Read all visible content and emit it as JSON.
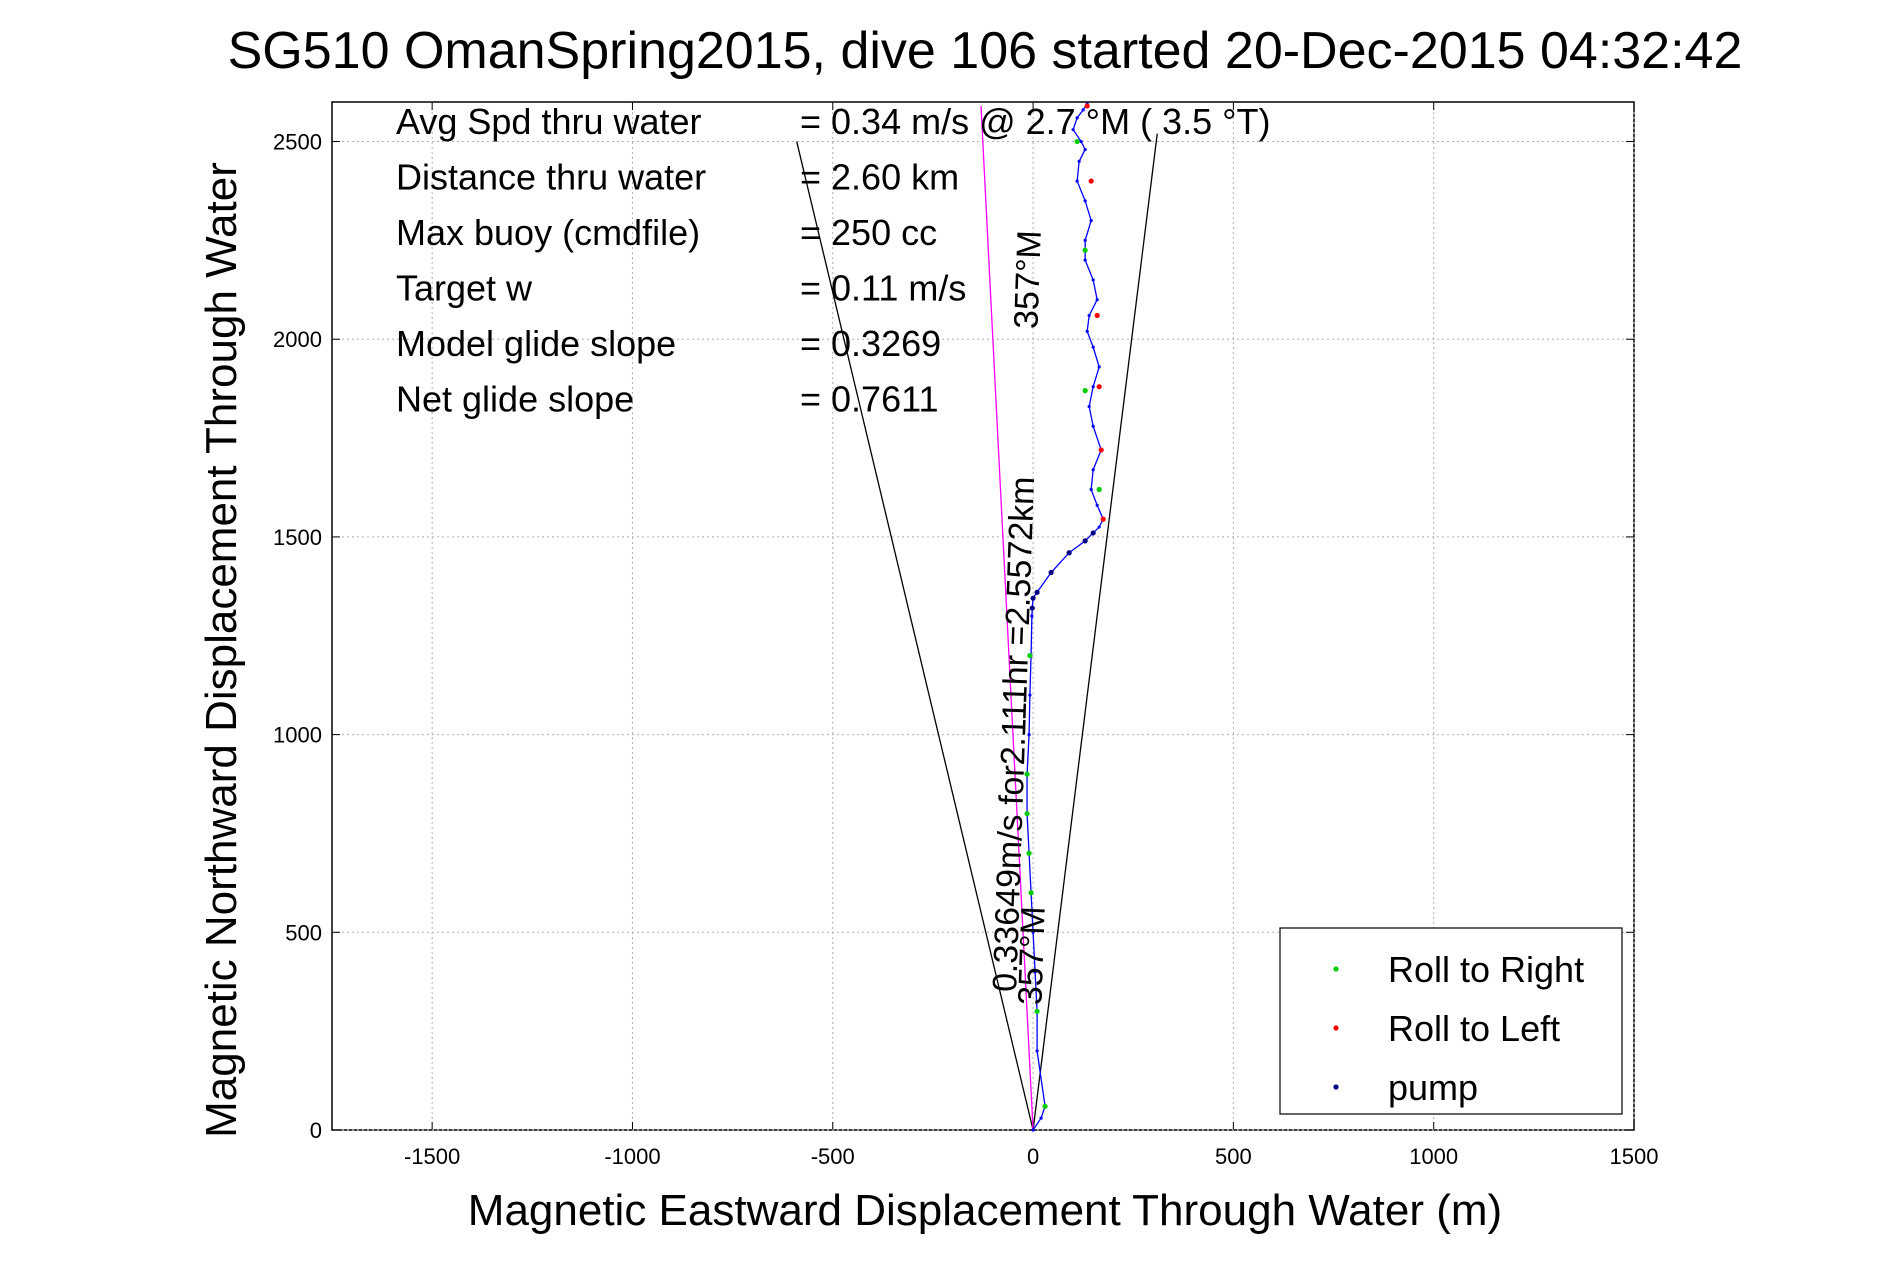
{
  "chart_data": {
    "type": "scatter",
    "title": "SG510 OmanSpring2015, dive 106 started 20-Dec-2015 04:32:42",
    "xlabel": "Magnetic Eastward Displacement Through Water (m)",
    "ylabel": "Magnetic Northward Displacement Through Water",
    "xlim": [
      -1750,
      1500
    ],
    "ylim": [
      0,
      2600
    ],
    "xticks": [
      -1500,
      -1000,
      -500,
      0,
      500,
      1000,
      1500
    ],
    "yticks": [
      0,
      500,
      1000,
      1500,
      2000,
      2500
    ],
    "xtick_labels": [
      "-1500",
      "-1000",
      "-500",
      "0",
      "500",
      "1000",
      "1500"
    ],
    "ytick_labels": [
      "0",
      "500",
      "1000",
      "1500",
      "2000",
      "2500"
    ],
    "grid": true,
    "legend_position": "bottom-right",
    "legend": [
      {
        "label": "Roll to Right",
        "color": "#00cc00"
      },
      {
        "label": "Roll to Left",
        "color": "#ff0000"
      },
      {
        "label": "pump",
        "color": "#000080"
      }
    ],
    "stats": [
      {
        "label": "Avg Spd thru water",
        "value": "=  0.34 m/s @   2.7 °M (  3.5 °T)"
      },
      {
        "label": "Distance thru water",
        "value": "=  2.60 km"
      },
      {
        "label": "Max buoy (cmdfile)",
        "value": "= 250 cc"
      },
      {
        "label": "Target w",
        "value": "= 0.11 m/s"
      },
      {
        "label": "Model glide slope",
        "value": "= 0.3269"
      },
      {
        "label": "Net glide slope",
        "value": "= 0.7611"
      }
    ],
    "annotations": [
      {
        "text": "357°M",
        "x": 15,
        "y": 2150
      },
      {
        "text": "0.33649m/s for2.111hr =2.5572km",
        "x": -20,
        "y": 1000
      },
      {
        "text": "357°M",
        "x": 25,
        "y": 440
      }
    ],
    "reference_lines": [
      {
        "name": "cone-left",
        "x": [
          0,
          -590
        ],
        "y": [
          0,
          2500
        ],
        "color": "#000000"
      },
      {
        "name": "cone-right",
        "x": [
          0,
          310
        ],
        "y": [
          0,
          2520
        ],
        "color": "#000000"
      },
      {
        "name": "track-line",
        "x": [
          0,
          -130
        ],
        "y": [
          0,
          2590
        ],
        "color": "#ff00ff"
      }
    ],
    "series": [
      {
        "name": "track",
        "color": "#0000ff",
        "x": [
          0,
          20,
          30,
          10,
          10,
          5,
          0,
          -5,
          -10,
          -15,
          -15,
          -10,
          -8,
          -5,
          -3,
          -2,
          0,
          10,
          45,
          90,
          130,
          150,
          165,
          175,
          160,
          145,
          150,
          170,
          150,
          140,
          150,
          165,
          150,
          135,
          140,
          160,
          150,
          130,
          130,
          145,
          130,
          110,
          115,
          130,
          120,
          100,
          110,
          125,
          135
        ],
        "y": [
          0,
          30,
          60,
          200,
          300,
          400,
          500,
          600,
          700,
          800,
          900,
          1000,
          1100,
          1200,
          1300,
          1320,
          1345,
          1360,
          1410,
          1460,
          1490,
          1510,
          1525,
          1545,
          1580,
          1620,
          1670,
          1720,
          1780,
          1830,
          1880,
          1930,
          1980,
          2020,
          2060,
          2100,
          2150,
          2200,
          2250,
          2300,
          2350,
          2400,
          2450,
          2480,
          2500,
          2530,
          2560,
          2580,
          2595
        ]
      },
      {
        "name": "Roll to Right",
        "color": "#00cc00",
        "x": [
          30,
          10,
          -5,
          -10,
          -15,
          -15,
          -8,
          165,
          130,
          130,
          110
        ],
        "y": [
          60,
          300,
          600,
          700,
          800,
          900,
          1200,
          1620,
          1870,
          2225,
          2500
        ]
      },
      {
        "name": "Roll to Left",
        "color": "#ff0000",
        "x": [
          175,
          170,
          165,
          160,
          145,
          135
        ],
        "y": [
          1545,
          1720,
          1880,
          2060,
          2400,
          2590
        ]
      },
      {
        "name": "pump",
        "color": "#000080",
        "x": [
          -2,
          0,
          10,
          45,
          90,
          130,
          150
        ],
        "y": [
          1320,
          1345,
          1360,
          1410,
          1460,
          1490,
          1510
        ]
      }
    ]
  }
}
